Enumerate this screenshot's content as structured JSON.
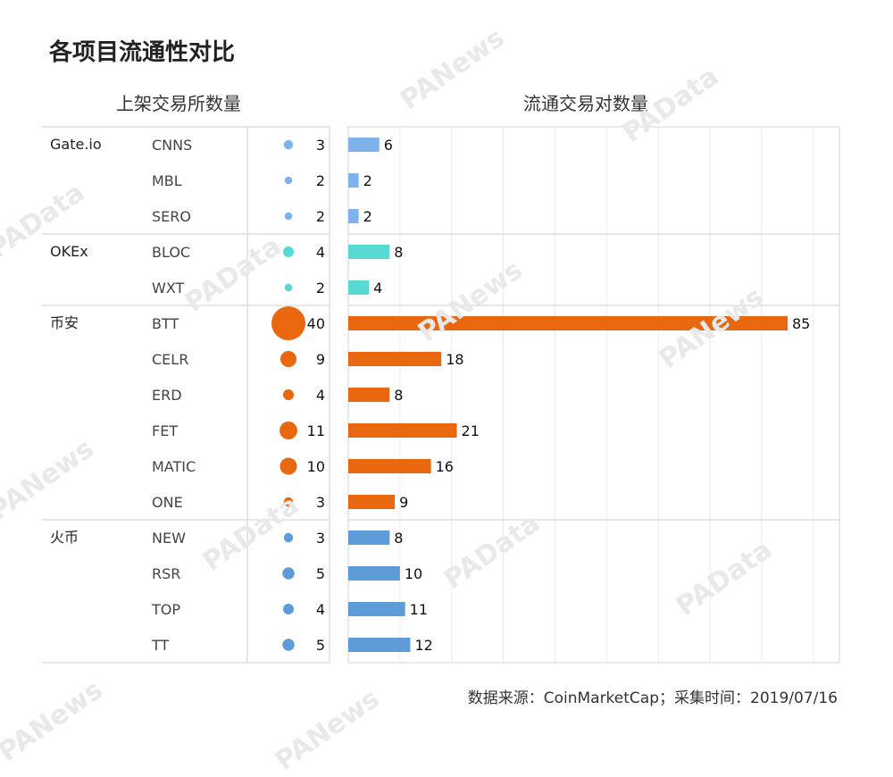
{
  "title": "各项目流通性对比",
  "left_title": "上架交易所数量",
  "right_title": "流通交易对数量",
  "footer": "数据来源：CoinMarketCap；采集时间：2019/07/16",
  "watermarks": [
    "PANews",
    "PAData"
  ],
  "colors": {
    "Gate.io": "#7fb1ea",
    "OKEx": "#57d9d4",
    "币安": "#e8670f",
    "火币": "#5d9bd9"
  },
  "chart_data": {
    "type": "bar",
    "groups": [
      {
        "exchange": "Gate.io",
        "projects": [
          "CNNS",
          "MBL",
          "SERO"
        ]
      },
      {
        "exchange": "OKEx",
        "projects": [
          "BLOC",
          "WXT"
        ]
      },
      {
        "exchange": "币安",
        "projects": [
          "BTT",
          "CELR",
          "ERD",
          "FET",
          "MATIC",
          "ONE"
        ]
      },
      {
        "exchange": "火币",
        "projects": [
          "NEW",
          "RSR",
          "TOP",
          "TT"
        ]
      }
    ],
    "categories": [
      "CNNS",
      "MBL",
      "SERO",
      "BLOC",
      "WXT",
      "BTT",
      "CELR",
      "ERD",
      "FET",
      "MATIC",
      "ONE",
      "NEW",
      "RSR",
      "TOP",
      "TT"
    ],
    "exchange_of": [
      "Gate.io",
      "Gate.io",
      "Gate.io",
      "OKEx",
      "OKEx",
      "币安",
      "币安",
      "币安",
      "币安",
      "币安",
      "币安",
      "火币",
      "火币",
      "火币",
      "火币"
    ],
    "series": [
      {
        "name": "上架交易所数量",
        "type": "bubble",
        "values": [
          3,
          2,
          2,
          4,
          2,
          40,
          9,
          4,
          11,
          10,
          3,
          3,
          5,
          4,
          5
        ]
      },
      {
        "name": "流通交易对数量",
        "type": "bar",
        "values": [
          6,
          2,
          2,
          8,
          4,
          85,
          18,
          8,
          21,
          16,
          9,
          8,
          10,
          11,
          12
        ]
      }
    ],
    "xlim": [
      0,
      95
    ],
    "grid": true
  }
}
